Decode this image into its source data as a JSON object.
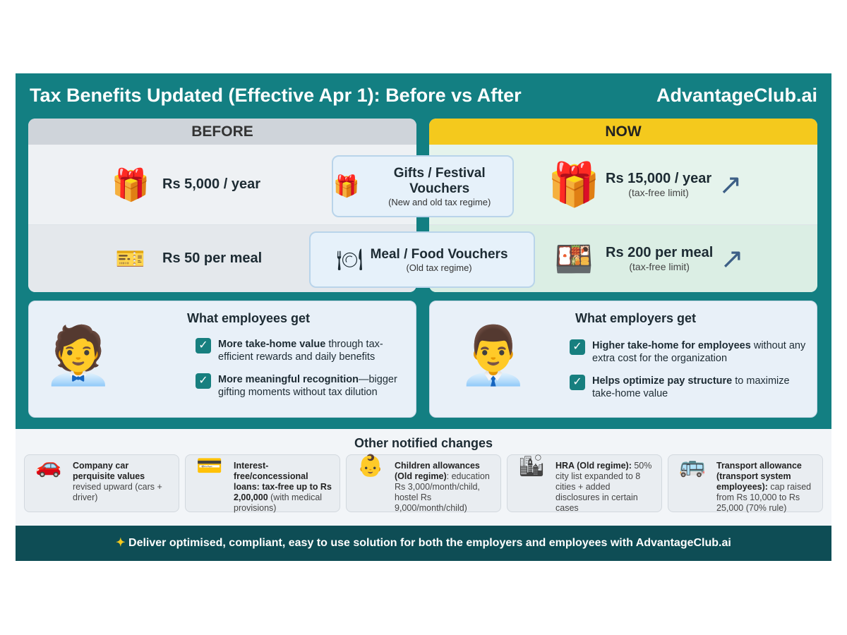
{
  "header": {
    "title": "Tax Benefits Updated (Effective Apr 1): Before vs After",
    "brand": "AdvantageClub.ai"
  },
  "before": {
    "label": "BEFORE",
    "gifts": "Rs 5,000 / year",
    "meal": "Rs 50 per meal"
  },
  "now": {
    "label": "NOW",
    "gifts": "Rs 15,000 / year",
    "gifts_note": "(tax-free limit)",
    "meal": "Rs 200 per meal",
    "meal_note": "(tax-free limit)"
  },
  "categories": [
    {
      "title": "Gifts / Festival Vouchers",
      "sub": "(New and old tax regime)",
      "icon": "gift-icon"
    },
    {
      "title": "Meal / Food Vouchers",
      "sub": "(Old tax regime)",
      "icon": "plate-icon"
    }
  ],
  "employees": {
    "title": "What employees get",
    "points": [
      {
        "bold": "More take-home value",
        "rest": " through tax-efficient rewards and daily benefits"
      },
      {
        "bold": "More meaningful recognition",
        "rest": "—bigger gifting moments without tax dilution"
      }
    ]
  },
  "employers": {
    "title": "What employers get",
    "points": [
      {
        "bold": "Higher take-home for employees",
        "rest": " without any extra cost for the organization"
      },
      {
        "bold": "Helps optimize pay structure",
        "rest": " to maximize take-home value"
      }
    ]
  },
  "other": {
    "title": "Other notified changes",
    "items": [
      {
        "icon": "car-icon",
        "bold": "Company car perquisite values",
        "rest": " revised upward (cars + driver)"
      },
      {
        "icon": "credit-card-icon",
        "bold": "Interest-free/concessional loans: tax-free up to Rs 2,00,000",
        "rest": " (with medical provisions)"
      },
      {
        "icon": "child-icon",
        "bold": "Children allowances (Old regime)",
        "rest": ": education Rs 3,000/month/child, hostel Rs 9,000/month/child)"
      },
      {
        "icon": "city-icon",
        "bold": "HRA (Old regime):",
        "rest": " 50% city list expanded to 8 cities + added disclosures in certain cases"
      },
      {
        "icon": "bus-icon",
        "bold": "Transport allowance (transport system employees):",
        "rest": " cap raised from Rs 10,000 to Rs 25,000 (70% rule)"
      }
    ]
  },
  "footer": "Deliver optimised, compliant, easy to use solution for both the employers and employees with AdvantageClub.ai"
}
